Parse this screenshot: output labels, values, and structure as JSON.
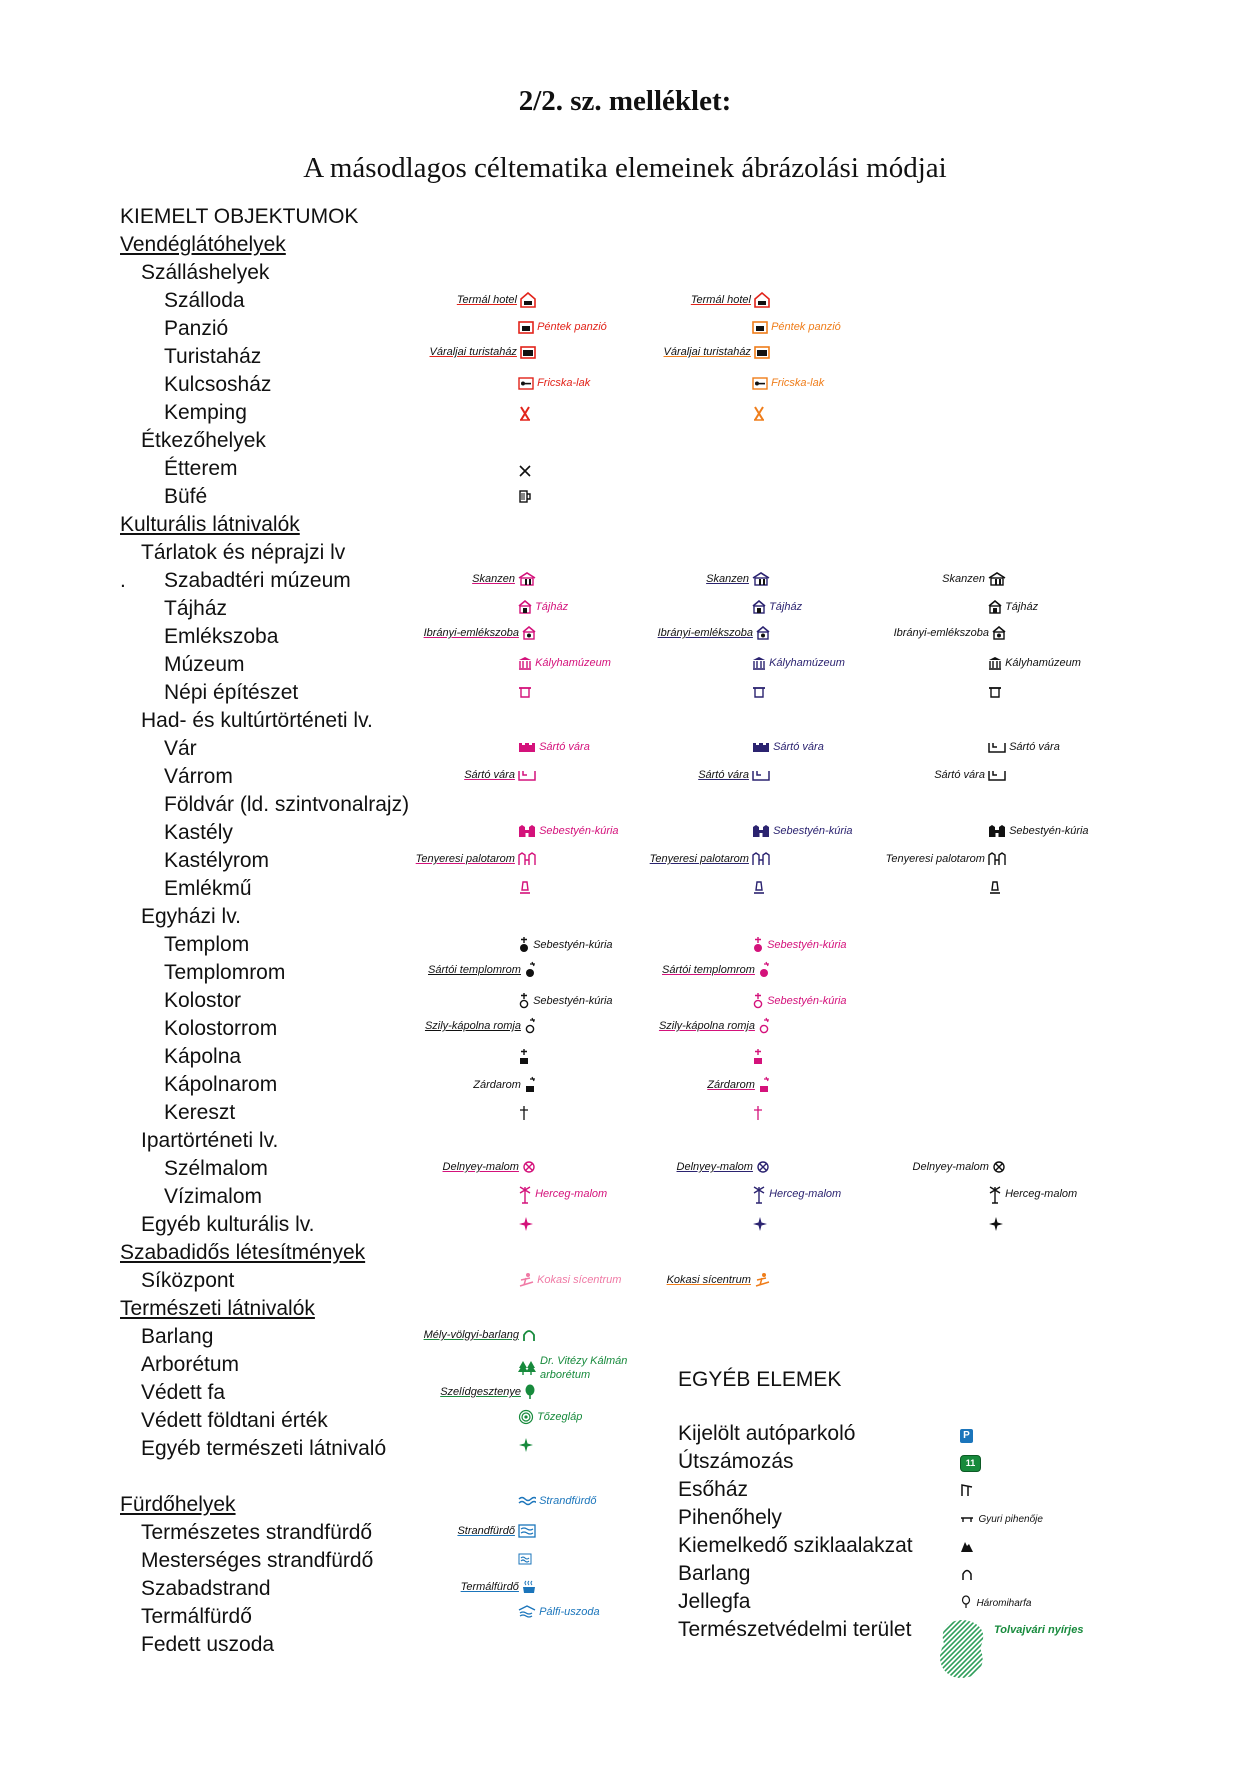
{
  "title": "2/2. sz. melléklet:",
  "subtitle": "A másodlagos céltematika elemeinek ábrázolási módjai",
  "colors": {
    "red": "#e2231a",
    "orange": "#ef7d1a",
    "magenta": "#d4127b",
    "navy": "#2b2370",
    "green": "#178a3c",
    "blue": "#1b75bb",
    "black": "#111111"
  },
  "rows": [
    {
      "label": "KIEMELT OBJEKTUMOK",
      "u": false
    },
    {
      "label": "Vendéglátóhelyek",
      "u": true
    },
    {
      "label": "Szálláshelyek",
      "u": false
    },
    {
      "label": "Szálloda",
      "u": false
    },
    {
      "label": "Panzió",
      "u": false
    },
    {
      "label": "Turistaház",
      "u": false
    },
    {
      "label": "Kulcsosház",
      "u": false
    },
    {
      "label": "Kemping",
      "u": false
    },
    {
      "label": "Étkezőhelyek",
      "u": false
    },
    {
      "label": "Étterem",
      "u": false
    },
    {
      "label": "Büfé",
      "u": false
    },
    {
      "label": "Kulturális látnivalók",
      "u": true
    },
    {
      "label": "Tárlatok és néprajzi lv",
      "u": false
    },
    {
      "label": "Szabadtéri múzeum",
      "u": false
    },
    {
      "label": "Tájház",
      "u": false
    },
    {
      "label": "Emlékszoba",
      "u": false
    },
    {
      "label": "Múzeum",
      "u": false
    },
    {
      "label": "Népi építészet",
      "u": false
    },
    {
      "label": "Had- és kultúrtörténeti lv.",
      "u": false
    },
    {
      "label": "Vár",
      "u": false
    },
    {
      "label": "Várrom",
      "u": false
    },
    {
      "label": "Földvár (ld. szintvonalrajz)",
      "u": false
    },
    {
      "label": "Kastély",
      "u": false
    },
    {
      "label": "Kastélyrom",
      "u": false
    },
    {
      "label": "Emlékmű",
      "u": false
    },
    {
      "label": "Egyházi lv.",
      "u": false
    },
    {
      "label": "Templom",
      "u": false
    },
    {
      "label": "Templomrom",
      "u": false
    },
    {
      "label": "Kolostor",
      "u": false
    },
    {
      "label": "Kolostorrom",
      "u": false
    },
    {
      "label": "Kápolna",
      "u": false
    },
    {
      "label": "Kápolnarom",
      "u": false
    },
    {
      "label": "Kereszt",
      "u": false
    },
    {
      "label": "Ipartörténeti lv.",
      "u": false
    },
    {
      "label": "Szélmalom",
      "u": false
    },
    {
      "label": "Vízimalom",
      "u": false
    },
    {
      "label": "Egyéb kulturális lv.",
      "u": false
    },
    {
      "label": "Szabadidős létesítmények",
      "u": true
    },
    {
      "label": "Síközpont",
      "u": false
    },
    {
      "label": "Természeti látnivalók",
      "u": true
    },
    {
      "label": "Barlang",
      "u": false
    },
    {
      "label": "Arborétum",
      "u": false
    },
    {
      "label": "Védett fa",
      "u": false
    },
    {
      "label": "Védett földtani érték",
      "u": false
    },
    {
      "label": "Egyéb természeti látnivaló",
      "u": false
    },
    {
      "label": "Fürdőhelyek",
      "u": true
    },
    {
      "label": "Természetes strandfürdő",
      "u": false
    },
    {
      "label": "Mesterséges strandfürdő",
      "u": false
    },
    {
      "label": "Szabadstrand",
      "u": false
    },
    {
      "label": "Termálfürdő",
      "u": false
    },
    {
      "label": "Fedett uszoda",
      "u": false
    }
  ],
  "marks": {
    "termal_hotel": "Termál hotel",
    "pentek_panzio": "Péntek panzió",
    "varaljai": "Váraljai turistaház",
    "fricska": "Fricska-lak",
    "skanzen": "Skanzen",
    "tajhaz": "Tájház",
    "iranyi": "Ibrányi-emlékszoba",
    "kalyhamuzeum": "Kályhamúzeum",
    "sarto_vara": "Sártó vára",
    "sebestyen": "Sebestyén-kúria",
    "tenyeresi": "Tenyeresi palotarom",
    "sartoi_templomrom": "Sártói templomrom",
    "szily": "Szily-kápolna romja",
    "zardarom": "Zárdarom",
    "delnyey": "Delnyey-malom",
    "herceg": "Herceg-malom",
    "kokasi": "Kokasi sícentrum",
    "mely_volgyi": "Mély-völgyi-barlang",
    "vitezy": "Dr. Vitézy Kálmán arborétum",
    "szelid": "Szelídgesztenye",
    "tozeglap": "Tőzegláp",
    "strandfurdo": "Strandfürdő",
    "termalfurdo": "Termálfürdő",
    "palfi": "Pálfi-uszoda"
  },
  "other": {
    "title": "EGYÉB ELEMEK",
    "items": [
      {
        "label": "Kijelölt autóparkoló",
        "sym": "P"
      },
      {
        "label": "Útszámozás",
        "sym": "11"
      },
      {
        "label": "Esőház",
        "sym": ""
      },
      {
        "label": "Pihenőhely",
        "sym": "Gyuri pihenője"
      },
      {
        "label": "Kiemelkedő sziklaalakzat",
        "sym": ""
      },
      {
        "label": "Barlang",
        "sym": ""
      },
      {
        "label": "Jellegfa",
        "sym": "Háromiharfa"
      },
      {
        "label": "Természetvédelmi terület",
        "sym": "Tolvajvári nyírjes"
      }
    ]
  }
}
